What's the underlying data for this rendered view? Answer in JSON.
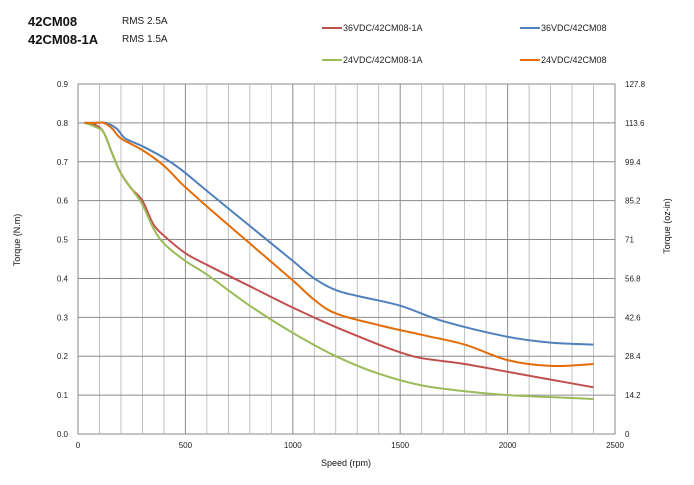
{
  "header": {
    "model_1": "42CM08",
    "rms_1": "RMS 2.5A",
    "model_2": "42CM08-1A",
    "rms_2": "RMS 1.5A"
  },
  "chart_data": {
    "type": "line",
    "title": "",
    "xlabel": "Speed (rpm)",
    "ylabel": "Torque (N.m)",
    "y2label": "Torque (oz-in)",
    "xlim": [
      0,
      2500
    ],
    "ylim": [
      0,
      0.9
    ],
    "y2lim": [
      0,
      127.8
    ],
    "x_ticks": [
      "0",
      "500",
      "1000",
      "1500",
      "2000",
      "2500"
    ],
    "y_ticks": [
      "0.0",
      "0.1",
      "0.2",
      "0.3",
      "0.4",
      "0.5",
      "0.6",
      "0.7",
      "0.8",
      "0.9"
    ],
    "y2_ticks": [
      "0",
      "14.2",
      "28.4",
      "42.6",
      "56.8",
      "71",
      "85.2",
      "99.4",
      "113.6",
      "127.8"
    ],
    "grid": true,
    "legend_position": "top",
    "series": [
      {
        "name": "36VDC/42CM08-1A",
        "color": "#c0504d",
        "x": [
          30,
          80,
          120,
          160,
          200,
          250,
          300,
          350,
          400,
          500,
          600,
          800,
          1000,
          1200,
          1400,
          1500,
          1600,
          1800,
          2000,
          2200,
          2400
        ],
        "y": [
          0.8,
          0.795,
          0.775,
          0.72,
          0.67,
          0.63,
          0.6,
          0.54,
          0.51,
          0.465,
          0.435,
          0.38,
          0.325,
          0.275,
          0.23,
          0.21,
          0.195,
          0.18,
          0.16,
          0.14,
          0.12
        ]
      },
      {
        "name": "36VDC/42CM08",
        "color": "#4f81bd",
        "x": [
          30,
          80,
          130,
          180,
          220,
          300,
          400,
          480,
          600,
          800,
          1000,
          1100,
          1200,
          1300,
          1500,
          1700,
          2000,
          2200,
          2400
        ],
        "y": [
          0.8,
          0.8,
          0.8,
          0.785,
          0.76,
          0.74,
          0.71,
          0.68,
          0.625,
          0.535,
          0.445,
          0.4,
          0.37,
          0.355,
          0.33,
          0.29,
          0.25,
          0.235,
          0.23
        ]
      },
      {
        "name": "24VDC/42CM08-1A",
        "color": "#9bbb59",
        "x": [
          30,
          80,
          120,
          160,
          200,
          250,
          300,
          350,
          400,
          500,
          600,
          800,
          1000,
          1200,
          1400,
          1600,
          1800,
          2000,
          2200,
          2400
        ],
        "y": [
          0.8,
          0.79,
          0.775,
          0.72,
          0.67,
          0.63,
          0.59,
          0.53,
          0.49,
          0.445,
          0.41,
          0.33,
          0.26,
          0.2,
          0.155,
          0.125,
          0.11,
          0.1,
          0.095,
          0.09
        ]
      },
      {
        "name": "24VDC/42CM08",
        "color": "#e36c09",
        "x": [
          30,
          80,
          120,
          160,
          200,
          300,
          400,
          480,
          550,
          600,
          800,
          1000,
          1100,
          1200,
          1400,
          1600,
          1800,
          2000,
          2200,
          2400
        ],
        "y": [
          0.8,
          0.8,
          0.8,
          0.785,
          0.76,
          0.73,
          0.69,
          0.645,
          0.61,
          0.585,
          0.49,
          0.395,
          0.345,
          0.31,
          0.28,
          0.255,
          0.23,
          0.19,
          0.175,
          0.18
        ]
      }
    ]
  }
}
